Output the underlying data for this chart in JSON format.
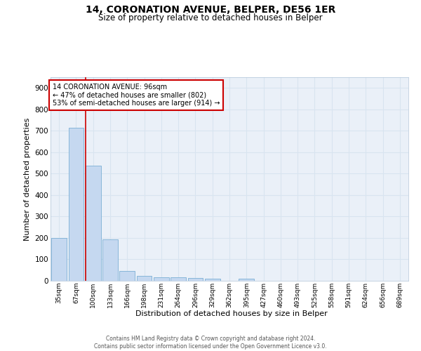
{
  "title": "14, CORONATION AVENUE, BELPER, DE56 1ER",
  "subtitle": "Size of property relative to detached houses in Belper",
  "xlabel": "Distribution of detached houses by size in Belper",
  "ylabel": "Number of detached properties",
  "categories": [
    "35sqm",
    "67sqm",
    "100sqm",
    "133sqm",
    "166sqm",
    "198sqm",
    "231sqm",
    "264sqm",
    "296sqm",
    "329sqm",
    "362sqm",
    "395sqm",
    "427sqm",
    "460sqm",
    "493sqm",
    "525sqm",
    "558sqm",
    "591sqm",
    "624sqm",
    "656sqm",
    "689sqm"
  ],
  "values": [
    200,
    715,
    538,
    192,
    47,
    22,
    18,
    15,
    12,
    10,
    0,
    10,
    0,
    0,
    0,
    0,
    0,
    0,
    0,
    0,
    0
  ],
  "bar_color": "#c5d8f0",
  "bar_edge_color": "#7bafd4",
  "red_line_index": 2,
  "annotation_text": "14 CORONATION AVENUE: 96sqm\n← 47% of detached houses are smaller (802)\n53% of semi-detached houses are larger (914) →",
  "annotation_box_color": "#ffffff",
  "annotation_box_edge": "#cc0000",
  "ylim": [
    0,
    950
  ],
  "yticks": [
    0,
    100,
    200,
    300,
    400,
    500,
    600,
    700,
    800,
    900
  ],
  "background_color": "#eaf0f8",
  "grid_color": "#d8e4f0",
  "footer_text": "Contains HM Land Registry data © Crown copyright and database right 2024.\nContains public sector information licensed under the Open Government Licence v3.0.",
  "title_fontsize": 10,
  "subtitle_fontsize": 8.5
}
